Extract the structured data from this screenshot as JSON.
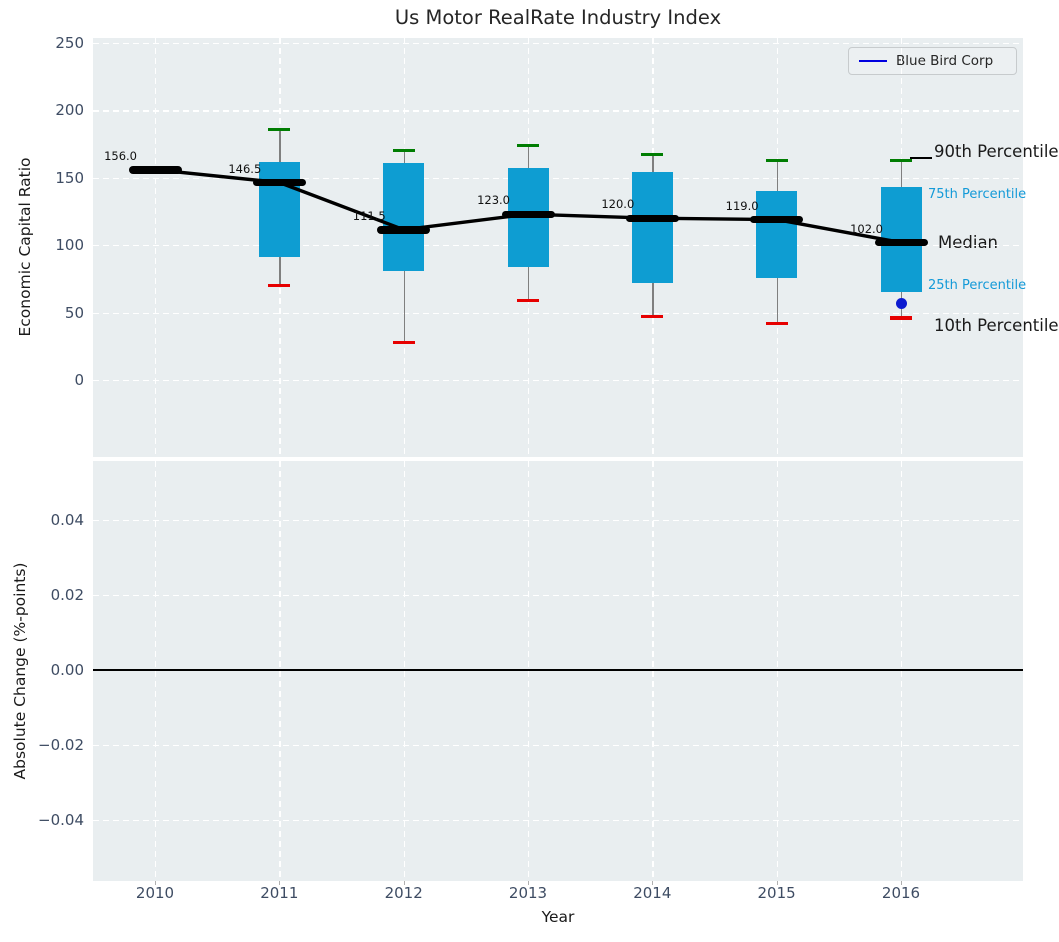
{
  "title": "Us Motor RealRate Industry Index",
  "legend": {
    "label": "Blue Bird Corp"
  },
  "colors": {
    "panel_bg": "#e9eef0",
    "box": "#0e9dd2",
    "cap_top": "#007d02",
    "cap_bottom": "#e60000",
    "median": "#000000",
    "whisker": "#7f7f7f",
    "company_dot": "#0d1bd0",
    "legend_line": "#0000e0",
    "percentile_label": "#149ad8",
    "tick_label": "#3e4c63"
  },
  "chart_data": [
    {
      "type": "boxplot-line",
      "title": "Us Motor RealRate Industry Index",
      "ylabel": "Economic Capital Ratio",
      "ylim": [
        -57,
        254
      ],
      "grid": "white-dashed",
      "yticks": [
        "250",
        "200",
        "150",
        "100",
        "50",
        "0"
      ],
      "ytick_values": [
        250,
        200,
        150,
        100,
        50,
        0
      ],
      "x": [
        2010,
        2011,
        2012,
        2013,
        2014,
        2015,
        2016
      ],
      "series": [
        {
          "name": "Median",
          "values": [
            156.0,
            146.5,
            111.5,
            123.0,
            120.0,
            119.0,
            102.0
          ]
        },
        {
          "name": "90th Percentile",
          "values": [
            null,
            186,
            170,
            174,
            167,
            163,
            163
          ]
        },
        {
          "name": "75th Percentile",
          "values": [
            null,
            162,
            161,
            157,
            154,
            140,
            143
          ]
        },
        {
          "name": "25th Percentile",
          "values": [
            null,
            91,
            81,
            84,
            72,
            76,
            65
          ]
        },
        {
          "name": "10th Percentile",
          "values": [
            null,
            70,
            28,
            59,
            47,
            42,
            46
          ]
        }
      ],
      "median_labels": [
        "156.0",
        "146.5",
        "111.5",
        "123.0",
        "120.0",
        "119.0",
        "102.0"
      ],
      "company": {
        "name": "Blue Bird Corp",
        "year": 2016,
        "value": 57
      },
      "annotations": [
        {
          "text": "90th Percentile",
          "style": "major",
          "anchor": "90th Percentile"
        },
        {
          "text": "75th Percentile",
          "style": "minor",
          "anchor": "75th Percentile"
        },
        {
          "text": "Median",
          "style": "major",
          "anchor": "Median"
        },
        {
          "text": "25th Percentile",
          "style": "minor",
          "anchor": "25th Percentile"
        },
        {
          "text": "10th Percentile",
          "style": "major",
          "anchor": "10th Percentile"
        }
      ],
      "legend": {
        "entries": [
          "Blue Bird Corp"
        ],
        "position": "upper right"
      }
    },
    {
      "type": "line",
      "ylabel": "Absolute Change (%-points)",
      "xlabel": "Year",
      "yticks": [
        "0.04",
        "0.02",
        "0.00",
        "−0.02",
        "−0.04"
      ],
      "ytick_values": [
        0.04,
        0.02,
        0.0,
        -0.02,
        -0.04
      ],
      "xticks": [
        "2010",
        "2011",
        "2012",
        "2013",
        "2014",
        "2015",
        "2016"
      ],
      "xtick_values": [
        2010,
        2011,
        2012,
        2013,
        2014,
        2015,
        2016
      ],
      "zero_line": 0.0,
      "series": [],
      "grid": "white-dashed"
    }
  ]
}
